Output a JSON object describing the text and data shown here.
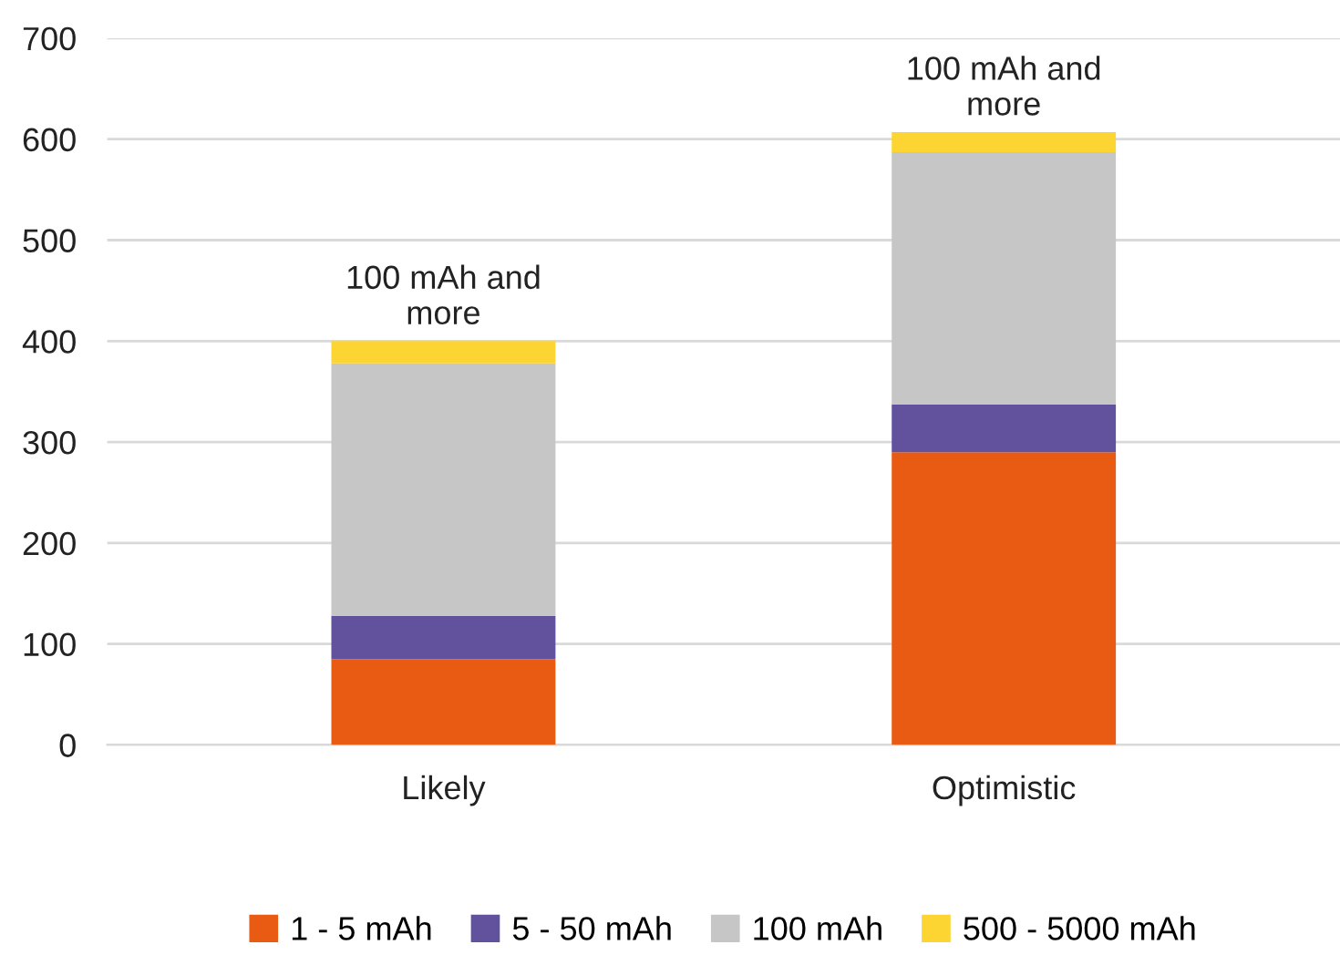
{
  "chart_data": {
    "type": "bar",
    "stacked": true,
    "categories": [
      "Likely",
      "Optimistic"
    ],
    "series": [
      {
        "name": "1 - 5 mAh",
        "color": "#e95b12",
        "values": [
          85,
          290
        ]
      },
      {
        "name": "5 - 50 mAh",
        "color": "#62529e",
        "values": [
          43,
          47
        ]
      },
      {
        "name": "100 mAh",
        "color": "#c6c6c6",
        "values": [
          250,
          250
        ]
      },
      {
        "name": "500 - 5000 mAh",
        "color": "#fcd532",
        "values": [
          22,
          20
        ]
      }
    ],
    "ylim": [
      0,
      700
    ],
    "yticks": [
      0,
      100,
      200,
      300,
      400,
      500,
      600,
      700
    ],
    "grid": "y",
    "legend": "bottom",
    "annotations": [
      {
        "text": "100 mAh and\nmore",
        "x": "Likely",
        "y": 400
      },
      {
        "text": "100 mAh and\nmore",
        "x": "Optimistic",
        "y": 607
      }
    ]
  }
}
